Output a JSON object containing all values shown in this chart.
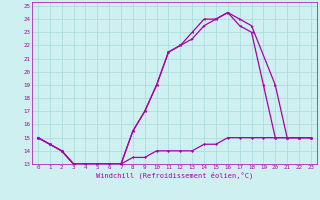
{
  "xlabel": "Windchill (Refroidissement éolien,°C)",
  "bg_color": "#cff0f0",
  "grid_color": "#aadddd",
  "line_color": "#aa00aa",
  "xlim": [
    -0.5,
    23.5
  ],
  "ylim": [
    13,
    25.3
  ],
  "xticks": [
    0,
    1,
    2,
    3,
    4,
    5,
    6,
    7,
    8,
    9,
    10,
    11,
    12,
    13,
    14,
    15,
    16,
    17,
    18,
    19,
    20,
    21,
    22,
    23
  ],
  "yticks": [
    13,
    14,
    15,
    16,
    17,
    18,
    19,
    20,
    21,
    22,
    23,
    24,
    25
  ],
  "line1_x": [
    0,
    1,
    2,
    3,
    4,
    5,
    6,
    7,
    8,
    9,
    10,
    11,
    12,
    13,
    14,
    15,
    16,
    17,
    18,
    20,
    21,
    22,
    23
  ],
  "line1_y": [
    15,
    14.5,
    14,
    13,
    13,
    13,
    13,
    13,
    15.5,
    17,
    19,
    21.5,
    22,
    22.5,
    23.5,
    24,
    24.5,
    24,
    23.5,
    19,
    15,
    15,
    15
  ],
  "line2_x": [
    0,
    1,
    2,
    3,
    4,
    5,
    6,
    7,
    8,
    9,
    10,
    11,
    12,
    13,
    14,
    15,
    16,
    17,
    18,
    19,
    20,
    21,
    22,
    23
  ],
  "line2_y": [
    15,
    14.5,
    14,
    13,
    13,
    13,
    13,
    13,
    15.5,
    17,
    19,
    21.5,
    22,
    23,
    24,
    24,
    24.5,
    23.5,
    23,
    19,
    15,
    15,
    15,
    15
  ],
  "line3_x": [
    0,
    1,
    2,
    3,
    4,
    5,
    6,
    7,
    8,
    9,
    10,
    11,
    12,
    13,
    14,
    15,
    16,
    17,
    18,
    19,
    20,
    21,
    22,
    23
  ],
  "line3_y": [
    15,
    14.5,
    14,
    13,
    13,
    13,
    13,
    13,
    13.5,
    13.5,
    14,
    14,
    14,
    14,
    14.5,
    14.5,
    15,
    15,
    15,
    15,
    15,
    15,
    15,
    15
  ]
}
